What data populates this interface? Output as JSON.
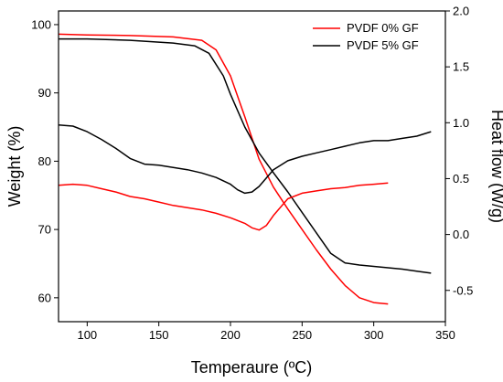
{
  "chart_data": {
    "type": "line",
    "xlabel": "Temperaure (ºC)",
    "ylabel_left": "Weight (%)",
    "ylabel_right": "Heat flow (W/g)",
    "xlim": [
      80,
      350
    ],
    "ylim_left": [
      56.5,
      102
    ],
    "ylim_right": [
      -0.78,
      2.0
    ],
    "x_ticks": [
      100,
      150,
      200,
      250,
      300,
      350
    ],
    "y_left_ticks": [
      60,
      70,
      80,
      90,
      100
    ],
    "y_right_ticks": [
      -0.5,
      0.0,
      0.5,
      1.0,
      1.5,
      2.0
    ],
    "y_right_tick_labels": [
      "-0.5",
      "0.0",
      "0.5",
      "1.0",
      "1.5",
      "2.0"
    ],
    "legend_position": "top-right",
    "grid": false,
    "legend": [
      {
        "name": "PVDF 0% GF",
        "color": "#ff0000"
      },
      {
        "name": "PVDF 5% GF",
        "color": "#000000"
      }
    ],
    "series": [
      {
        "name": "PVDF 0% GF",
        "axis": "left",
        "color": "#ff0000",
        "x": [
          80,
          100,
          130,
          160,
          180,
          190,
          200,
          210,
          220,
          230,
          240,
          250,
          260,
          270,
          280,
          290,
          300,
          310
        ],
        "values": [
          98.6,
          98.5,
          98.4,
          98.2,
          97.7,
          96.3,
          92.5,
          86.5,
          80.3,
          76.2,
          73.0,
          70.0,
          67.0,
          64.2,
          61.8,
          60.0,
          59.3,
          59.1
        ]
      },
      {
        "name": "PVDF 5% GF",
        "axis": "left",
        "color": "#000000",
        "x": [
          80,
          100,
          130,
          160,
          175,
          185,
          195,
          200,
          210,
          220,
          230,
          240,
          250,
          260,
          270,
          280,
          290,
          300,
          310,
          320,
          330,
          340
        ],
        "values": [
          97.9,
          97.9,
          97.7,
          97.3,
          96.9,
          95.8,
          92.5,
          89.8,
          85.0,
          81.2,
          78.3,
          75.5,
          72.5,
          69.5,
          66.5,
          65.1,
          64.8,
          64.6,
          64.4,
          64.2,
          63.9,
          63.6
        ]
      },
      {
        "name": "PVDF 0% GF",
        "axis": "right",
        "color": "#ff0000",
        "x": [
          80,
          90,
          100,
          110,
          120,
          130,
          140,
          150,
          160,
          170,
          180,
          190,
          200,
          210,
          215,
          220,
          225,
          230,
          240,
          250,
          260,
          270,
          280,
          290,
          300,
          310
        ],
        "values": [
          0.44,
          0.45,
          0.44,
          0.41,
          0.38,
          0.34,
          0.32,
          0.29,
          0.26,
          0.24,
          0.22,
          0.19,
          0.15,
          0.1,
          0.06,
          0.04,
          0.08,
          0.17,
          0.32,
          0.37,
          0.39,
          0.41,
          0.42,
          0.44,
          0.45,
          0.46
        ]
      },
      {
        "name": "PVDF 5% GF",
        "axis": "right",
        "color": "#000000",
        "x": [
          80,
          90,
          100,
          110,
          120,
          130,
          140,
          150,
          160,
          170,
          180,
          190,
          200,
          205,
          210,
          215,
          220,
          230,
          240,
          250,
          260,
          270,
          280,
          290,
          300,
          310,
          320,
          330,
          340
        ],
        "values": [
          0.98,
          0.97,
          0.92,
          0.85,
          0.77,
          0.68,
          0.63,
          0.62,
          0.6,
          0.58,
          0.55,
          0.51,
          0.45,
          0.4,
          0.37,
          0.38,
          0.43,
          0.58,
          0.66,
          0.7,
          0.73,
          0.76,
          0.79,
          0.82,
          0.84,
          0.84,
          0.86,
          0.88,
          0.92
        ]
      }
    ]
  }
}
